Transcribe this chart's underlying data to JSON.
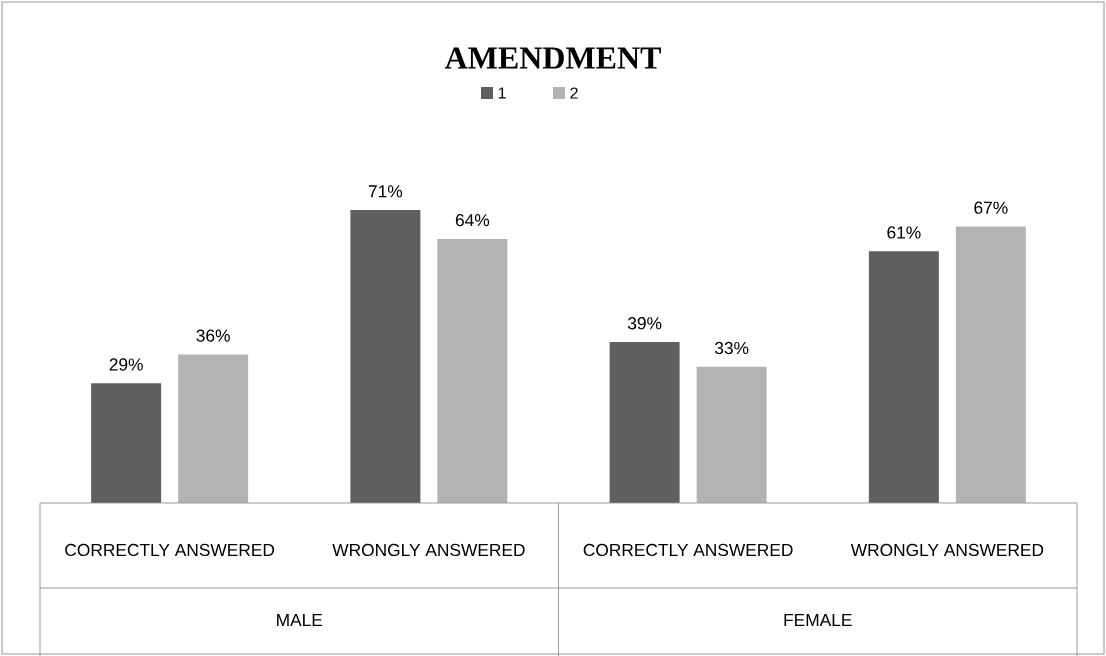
{
  "chart_data": {
    "type": "bar",
    "title": "AMENDMENT",
    "categories": [
      "CORRECTLY ANSWERED",
      "WRONGLY ANSWERED",
      "CORRECTLY ANSWERED",
      "WRONGLY ANSWERED"
    ],
    "series": [
      {
        "name": "1",
        "color": "#5f5f5f",
        "values": [
          29,
          71,
          39,
          61
        ],
        "value_labels": [
          "29%",
          "71%",
          "39%",
          "61%"
        ]
      },
      {
        "name": "2",
        "color": "#b3b3b3",
        "values": [
          36,
          64,
          33,
          67
        ],
        "value_labels": [
          "36%",
          "64%",
          "33%",
          "67%"
        ]
      }
    ],
    "legend": "top",
    "annotations": [
      "MALE",
      "FEMALE"
    ]
  }
}
